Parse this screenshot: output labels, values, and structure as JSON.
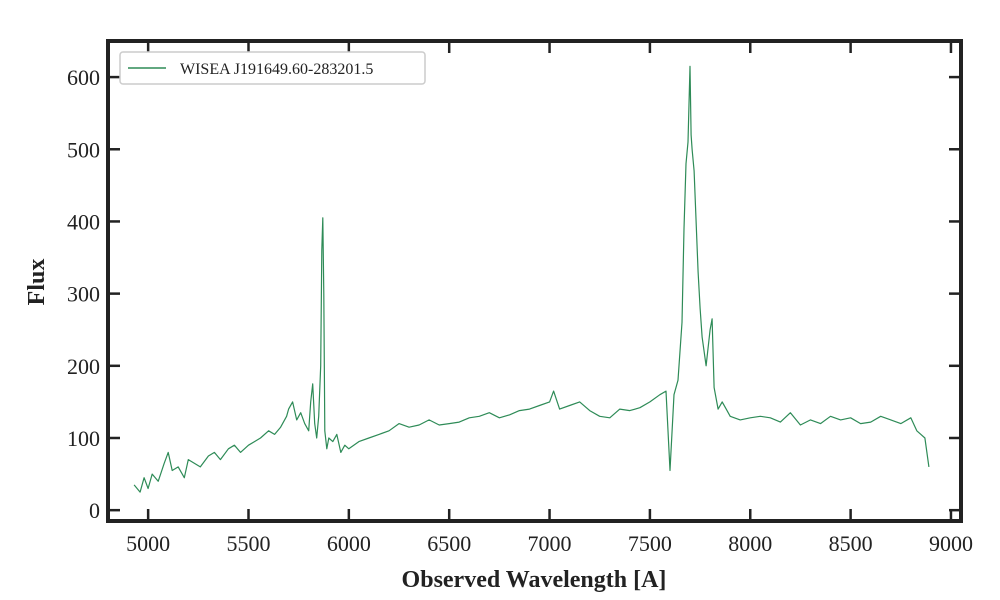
{
  "chart_data": {
    "type": "line",
    "title": "",
    "xlabel": "Observed Wavelength [A]",
    "ylabel": "Flux",
    "xlim": [
      4800,
      9050
    ],
    "ylim": [
      -15,
      650
    ],
    "xticks": [
      5000,
      5500,
      6000,
      6500,
      7000,
      7500,
      8000,
      8500,
      9000
    ],
    "yticks": [
      0,
      100,
      200,
      300,
      400,
      500,
      600
    ],
    "grid": false,
    "legend": {
      "placement": "top-left"
    },
    "series": [
      {
        "name": "WISEA J191649.60-283201.5",
        "color": "#2e8b57",
        "x": [
          4930,
          4960,
          4980,
          5000,
          5020,
          5050,
          5080,
          5100,
          5120,
          5150,
          5180,
          5200,
          5230,
          5260,
          5300,
          5330,
          5360,
          5400,
          5430,
          5460,
          5500,
          5530,
          5560,
          5600,
          5630,
          5660,
          5690,
          5700,
          5720,
          5740,
          5760,
          5780,
          5800,
          5810,
          5820,
          5830,
          5840,
          5850,
          5860,
          5865,
          5870,
          5875,
          5880,
          5890,
          5900,
          5920,
          5940,
          5960,
          5980,
          6000,
          6050,
          6100,
          6150,
          6200,
          6250,
          6300,
          6350,
          6400,
          6450,
          6500,
          6550,
          6600,
          6650,
          6700,
          6750,
          6800,
          6850,
          6900,
          6950,
          7000,
          7020,
          7050,
          7100,
          7150,
          7200,
          7250,
          7300,
          7350,
          7400,
          7450,
          7500,
          7550,
          7580,
          7600,
          7620,
          7640,
          7660,
          7670,
          7680,
          7690,
          7700,
          7705,
          7710,
          7720,
          7730,
          7740,
          7750,
          7760,
          7780,
          7800,
          7810,
          7820,
          7840,
          7860,
          7880,
          7900,
          7950,
          8000,
          8050,
          8100,
          8150,
          8200,
          8250,
          8300,
          8350,
          8400,
          8450,
          8500,
          8550,
          8600,
          8650,
          8700,
          8750,
          8800,
          8830,
          8850,
          8870,
          8890
        ],
        "y": [
          35,
          25,
          45,
          30,
          50,
          40,
          65,
          80,
          55,
          60,
          45,
          70,
          65,
          60,
          75,
          80,
          70,
          85,
          90,
          80,
          90,
          95,
          100,
          110,
          105,
          115,
          130,
          140,
          150,
          125,
          135,
          120,
          110,
          150,
          175,
          120,
          100,
          130,
          200,
          360,
          405,
          300,
          110,
          85,
          100,
          95,
          105,
          80,
          90,
          85,
          95,
          100,
          105,
          110,
          120,
          115,
          118,
          125,
          118,
          120,
          122,
          128,
          130,
          135,
          128,
          132,
          138,
          140,
          145,
          150,
          165,
          140,
          145,
          150,
          138,
          130,
          128,
          140,
          138,
          142,
          150,
          160,
          165,
          55,
          160,
          180,
          260,
          390,
          480,
          510,
          615,
          520,
          500,
          470,
          400,
          330,
          280,
          240,
          200,
          250,
          265,
          170,
          140,
          150,
          140,
          130,
          125,
          128,
          130,
          128,
          122,
          135,
          118,
          125,
          120,
          130,
          125,
          128,
          120,
          122,
          130,
          125,
          120,
          128,
          110,
          105,
          100,
          60
        ]
      }
    ]
  }
}
